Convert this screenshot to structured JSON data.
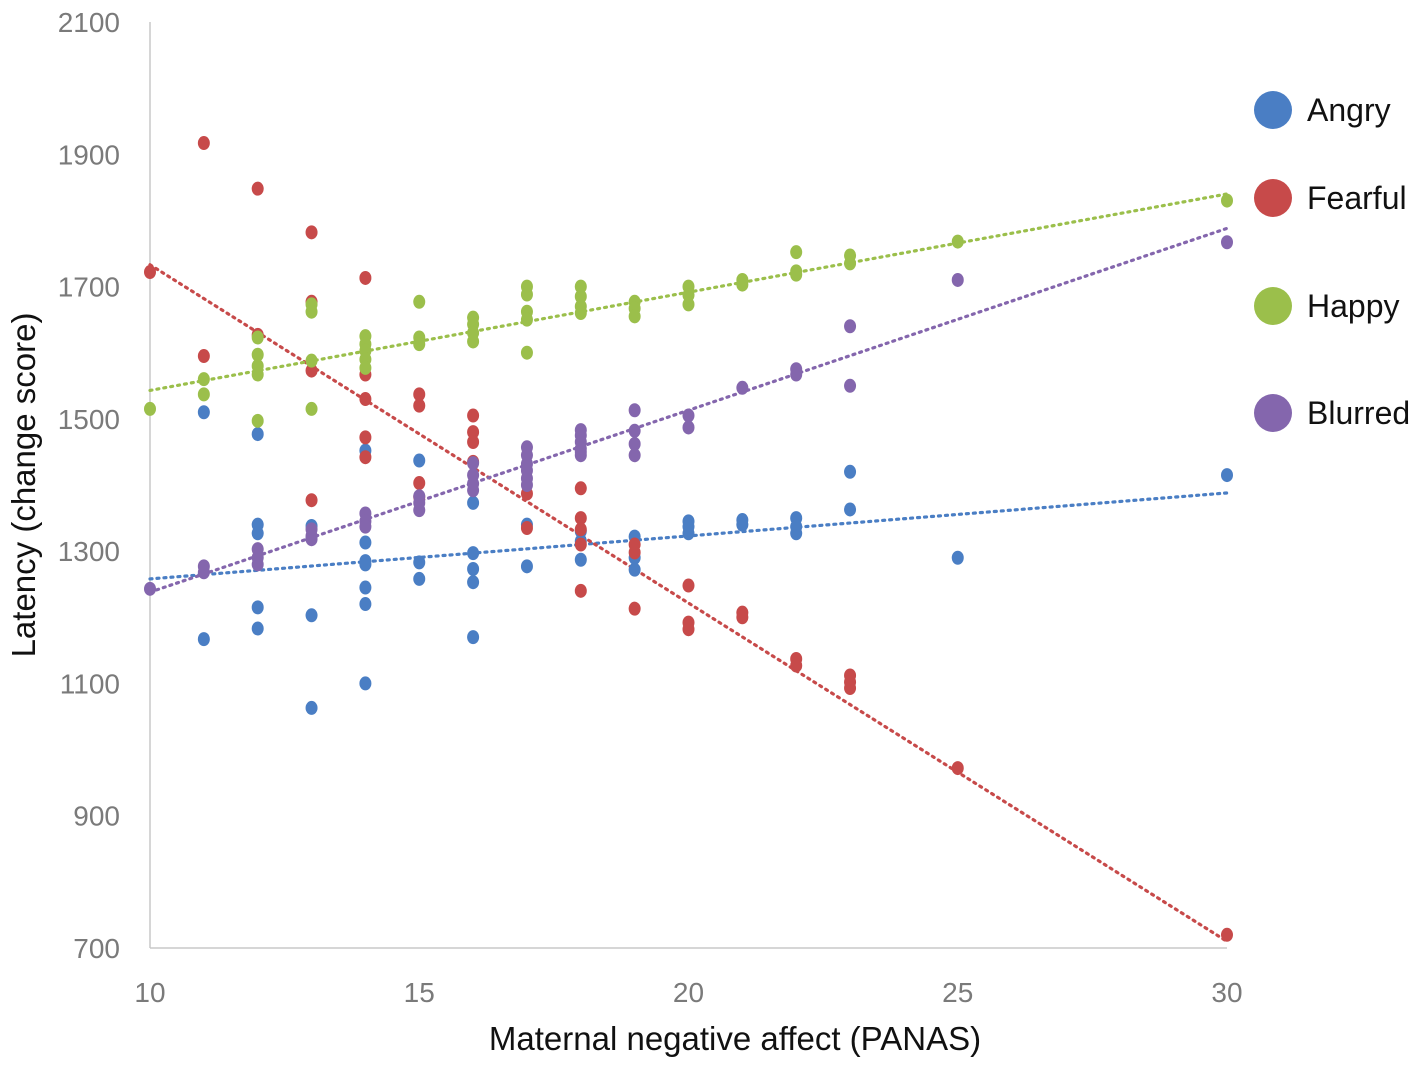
{
  "chart_data": {
    "type": "scatter",
    "title": "",
    "xlabel": "Maternal negative affect (PANAS)",
    "ylabel": "Latency (change score)",
    "xlim": [
      10,
      30
    ],
    "ylim": [
      700,
      2100
    ],
    "xticks": [
      10,
      15,
      20,
      25,
      30
    ],
    "yticks": [
      700,
      900,
      1100,
      1300,
      1500,
      1700,
      1900,
      2100
    ],
    "legend_position": "right",
    "grid": false,
    "series": [
      {
        "name": "Angry",
        "color": "#4a7ec4",
        "trend": [
          [
            10,
            1258
          ],
          [
            30,
            1388
          ]
        ],
        "x": [
          11,
          11,
          12,
          12,
          12,
          12,
          12,
          13,
          13,
          13,
          13,
          14,
          14,
          14,
          14,
          14,
          14,
          14,
          15,
          15,
          15,
          16,
          16,
          16,
          16,
          16,
          17,
          17,
          18,
          18,
          18,
          19,
          19,
          19,
          20,
          20,
          20,
          21,
          21,
          22,
          22,
          22,
          23,
          23,
          25,
          30
        ],
        "y": [
          1510,
          1167,
          1477,
          1340,
          1327,
          1215,
          1183,
          1338,
          1320,
          1203,
          1063,
          1452,
          1313,
          1285,
          1245,
          1220,
          1100,
          1280,
          1437,
          1283,
          1258,
          1373,
          1297,
          1273,
          1253,
          1170,
          1340,
          1277,
          1330,
          1315,
          1287,
          1322,
          1290,
          1272,
          1345,
          1337,
          1327,
          1347,
          1340,
          1350,
          1337,
          1327,
          1420,
          1363,
          1290,
          1415
        ]
      },
      {
        "name": "Fearful",
        "color": "#c74a4a",
        "trend": [
          [
            10,
            1733
          ],
          [
            30,
            710
          ]
        ],
        "x": [
          10,
          11,
          11,
          12,
          12,
          13,
          13,
          13,
          13,
          14,
          14,
          14,
          14,
          14,
          15,
          15,
          15,
          15,
          16,
          16,
          16,
          16,
          17,
          17,
          18,
          18,
          18,
          18,
          18,
          19,
          19,
          19,
          20,
          20,
          20,
          21,
          21,
          22,
          22,
          23,
          23,
          23,
          25,
          30
        ],
        "y": [
          1722,
          1917,
          1595,
          1848,
          1627,
          1782,
          1677,
          1573,
          1377,
          1713,
          1567,
          1530,
          1472,
          1442,
          1537,
          1520,
          1403,
          1382,
          1505,
          1480,
          1465,
          1435,
          1387,
          1335,
          1395,
          1350,
          1333,
          1310,
          1240,
          1310,
          1298,
          1213,
          1248,
          1192,
          1182,
          1207,
          1200,
          1137,
          1127,
          1112,
          1102,
          1093,
          972,
          720
        ]
      },
      {
        "name": "Happy",
        "color": "#9bbf4b",
        "trend": [
          [
            10,
            1543
          ],
          [
            30,
            1840
          ]
        ],
        "x": [
          10,
          11,
          11,
          12,
          12,
          12,
          12,
          12,
          13,
          13,
          13,
          13,
          14,
          14,
          14,
          14,
          14,
          15,
          15,
          15,
          16,
          16,
          16,
          16,
          17,
          17,
          17,
          17,
          17,
          18,
          18,
          18,
          18,
          19,
          19,
          19,
          20,
          20,
          20,
          21,
          21,
          22,
          22,
          22,
          23,
          23,
          25,
          30
        ],
        "y": [
          1515,
          1560,
          1537,
          1623,
          1597,
          1580,
          1567,
          1497,
          1673,
          1662,
          1588,
          1515,
          1625,
          1613,
          1603,
          1590,
          1577,
          1677,
          1623,
          1613,
          1653,
          1643,
          1630,
          1617,
          1700,
          1688,
          1662,
          1650,
          1600,
          1700,
          1685,
          1670,
          1660,
          1677,
          1667,
          1655,
          1700,
          1687,
          1673,
          1710,
          1703,
          1752,
          1723,
          1718,
          1747,
          1735,
          1768,
          1830
        ]
      },
      {
        "name": "Blurred",
        "color": "#8466ad",
        "trend": [
          [
            10,
            1238
          ],
          [
            30,
            1788
          ]
        ],
        "x": [
          10,
          11,
          11,
          12,
          12,
          12,
          13,
          13,
          13,
          14,
          14,
          14,
          15,
          15,
          15,
          16,
          16,
          16,
          16,
          17,
          17,
          17,
          17,
          17,
          17,
          18,
          18,
          18,
          18,
          18,
          18,
          19,
          19,
          19,
          19,
          20,
          20,
          21,
          22,
          22,
          23,
          23,
          25,
          30
        ],
        "y": [
          1243,
          1277,
          1268,
          1303,
          1290,
          1280,
          1333,
          1323,
          1318,
          1357,
          1345,
          1337,
          1383,
          1373,
          1362,
          1433,
          1415,
          1402,
          1392,
          1457,
          1445,
          1432,
          1422,
          1410,
          1400,
          1483,
          1475,
          1465,
          1455,
          1450,
          1445,
          1513,
          1482,
          1462,
          1445,
          1505,
          1487,
          1547,
          1575,
          1567,
          1640,
          1550,
          1710,
          1767
        ]
      }
    ]
  }
}
